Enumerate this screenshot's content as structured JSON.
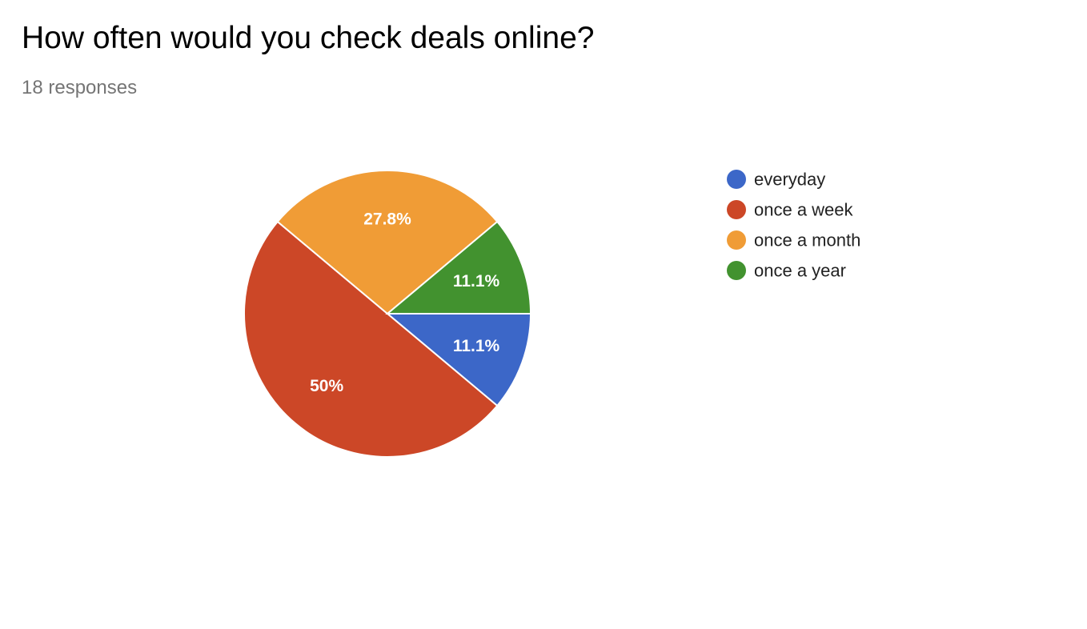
{
  "header": {
    "title": "How often would you check deals online?",
    "responses": "18 responses"
  },
  "chart_data": {
    "type": "pie",
    "title": "How often would you check deals online?",
    "total_responses": 18,
    "slices": [
      {
        "label": "everyday",
        "value": 11.1,
        "display": "11.1%",
        "color": "#3c67c8"
      },
      {
        "label": "once a week",
        "value": 50,
        "display": "50%",
        "color": "#cc4727"
      },
      {
        "label": "once a month",
        "value": 27.8,
        "display": "27.8%",
        "color": "#f09c36"
      },
      {
        "label": "once a year",
        "value": 11.1,
        "display": "11.1%",
        "color": "#42922f"
      }
    ],
    "start_angle": "3 o'clock",
    "direction": "clockwise",
    "legend_position": "right"
  }
}
